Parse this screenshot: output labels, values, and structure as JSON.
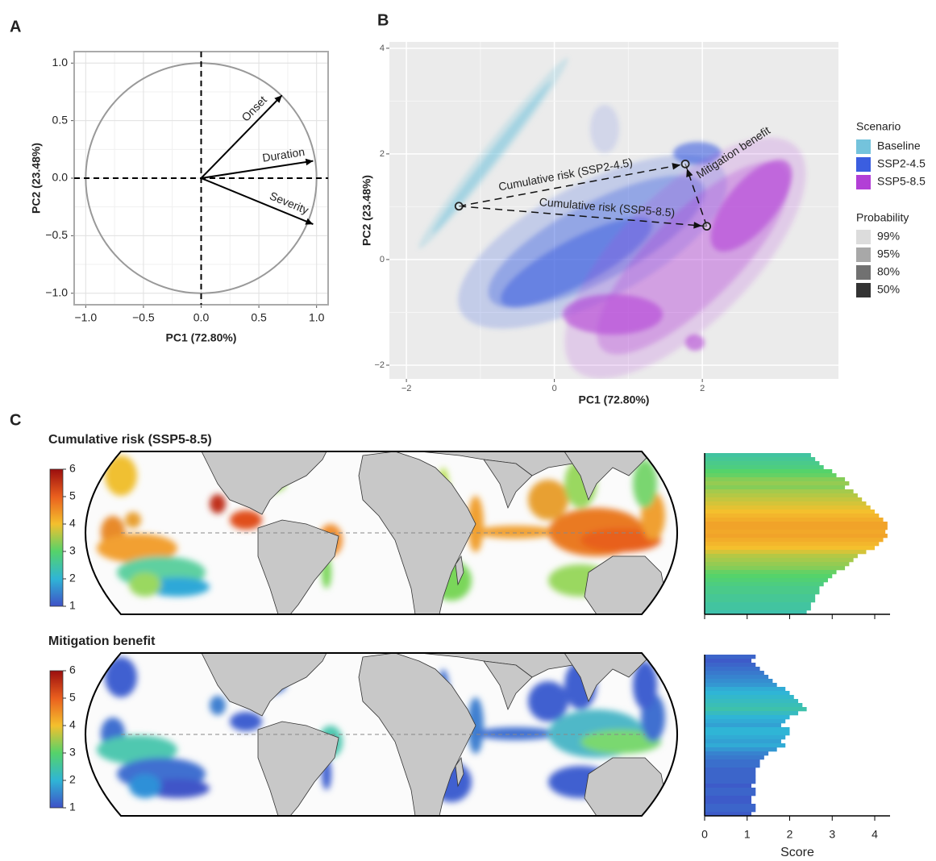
{
  "chart_data": [
    {
      "type": "vector",
      "panel": "A",
      "xlabel": "PC1 (72.80%)",
      "ylabel": "PC2 (23.48%)",
      "xlim": [
        -1.1,
        1.1
      ],
      "ylim": [
        -1.1,
        1.1
      ],
      "xticks": [
        {
          "value": -1,
          "label": "−1.0"
        },
        {
          "value": -0.5,
          "label": "−0.5"
        },
        {
          "value": 0,
          "label": "0.0"
        },
        0.5,
        {
          "value": 1,
          "label": "1.0"
        }
      ],
      "yticks": [
        {
          "value": -1,
          "label": "−1.0"
        },
        {
          "value": -0.5,
          "label": "−0.5"
        },
        {
          "value": 0,
          "label": "0.0"
        },
        0.5,
        {
          "value": 1,
          "label": "1.0"
        }
      ],
      "grid": true,
      "vectors": [
        {
          "name": "Onset",
          "x": 0.7,
          "y": 0.72
        },
        {
          "name": "Duration",
          "x": 0.97,
          "y": 0.15
        },
        {
          "name": "Severity",
          "x": 0.97,
          "y": -0.4
        }
      ]
    },
    {
      "type": "scatter",
      "panel": "B",
      "xlabel": "PC1 (72.80%)",
      "ylabel": "PC2 (23.48%)",
      "xlim": [
        -2.23,
        3.84
      ],
      "ylim": [
        -2.26,
        4.12
      ],
      "xticks": [
        {
          "value": -2,
          "label": "−2"
        },
        0,
        2
      ],
      "yticks": [
        {
          "value": -2,
          "label": "−2"
        },
        0,
        2,
        4
      ],
      "grid": true,
      "legend_title": "Scenario",
      "legend_position": "right",
      "series": [
        {
          "name": "Baseline",
          "color": "#74c3dc",
          "x": [
            -1.29
          ],
          "y": [
            1.01
          ]
        },
        {
          "name": "SSP2-4.5",
          "color": "#3b5ee0",
          "x": [
            1.77
          ],
          "y": [
            1.81
          ]
        },
        {
          "name": "SSP5-8.5",
          "color": "#b23fd6",
          "x": [
            2.06
          ],
          "y": [
            0.63
          ]
        }
      ],
      "probability_title": "Probability",
      "probability_levels": [
        "99%",
        "95%",
        "80%",
        "50%"
      ],
      "probability_colors": [
        "#dcdcdc",
        "#a8a8a8",
        "#717171",
        "#333333"
      ],
      "annotations": [
        "Cumulative risk (SSP2-4.5)",
        "Cumulative risk (SSP5-8.5)",
        "Mitigation benefit"
      ]
    },
    {
      "type": "map",
      "panel": "C",
      "title": "Cumulative risk (SSP5-8.5)",
      "colorbar": {
        "ticks": [
          1,
          2,
          3,
          4,
          5,
          6
        ],
        "colors": [
          "#3f51c7",
          "#2fb5d6",
          "#55d36a",
          "#f4c02d",
          "#ea5f1e",
          "#9b0e0e"
        ]
      },
      "histogram": {
        "values": [
          2.5,
          2.6,
          2.7,
          2.8,
          3.0,
          3.1,
          3.3,
          3.4,
          3.3,
          3.5,
          3.6,
          3.7,
          3.8,
          3.9,
          4.0,
          4.1,
          4.2,
          4.3,
          4.3,
          4.25,
          4.3,
          4.2,
          4.1,
          4.0,
          3.8,
          3.6,
          3.5,
          3.4,
          3.3,
          3.1,
          3.0,
          2.9,
          2.8,
          2.7,
          2.7,
          2.6,
          2.6,
          2.5,
          2.5,
          2.4
        ],
        "xlim": [
          0,
          4.36
        ],
        "xticks": [
          0,
          1,
          2,
          3,
          4
        ]
      }
    },
    {
      "type": "map",
      "title": "Mitigation benefit",
      "colorbar": {
        "ticks": [
          1,
          2,
          3,
          4,
          5,
          6
        ],
        "colors": [
          "#3f51c7",
          "#2fb5d6",
          "#55d36a",
          "#f4c02d",
          "#ea5f1e",
          "#9b0e0e"
        ]
      },
      "histogram": {
        "values": [
          1.2,
          1.1,
          1.2,
          1.3,
          1.4,
          1.5,
          1.6,
          1.7,
          1.9,
          2.0,
          2.1,
          2.2,
          2.3,
          2.4,
          2.2,
          2.0,
          1.9,
          1.8,
          2.0,
          2.0,
          1.9,
          1.8,
          1.9,
          1.7,
          1.5,
          1.4,
          1.3,
          1.3,
          1.2,
          1.2,
          1.2,
          1.2,
          1.1,
          1.2,
          1.2,
          1.1,
          1.1,
          1.2,
          1.2,
          1.1
        ],
        "xlim": [
          0,
          4.36
        ],
        "xticks": [
          0,
          1,
          2,
          3,
          4
        ],
        "xlabel": "Score"
      }
    }
  ]
}
